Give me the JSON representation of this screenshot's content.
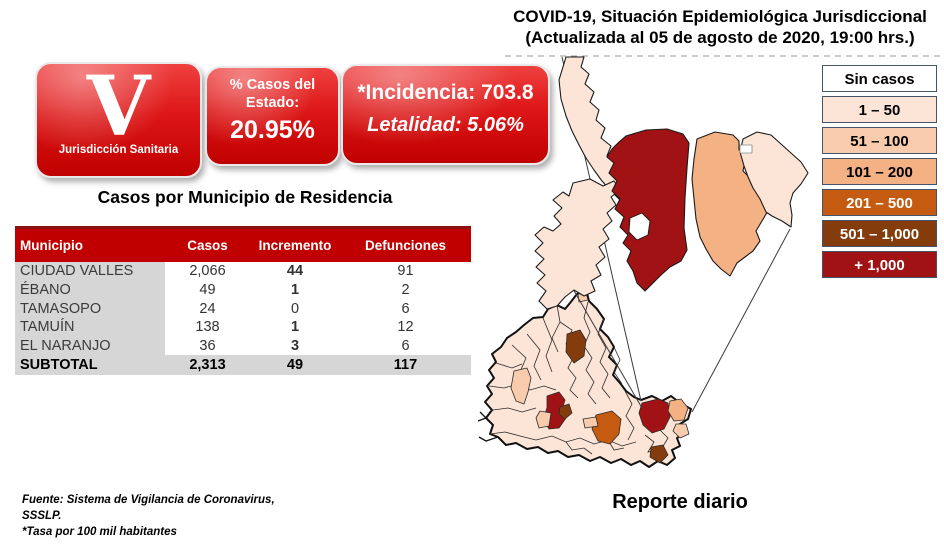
{
  "title": {
    "line1": "COVID-19, Situación Epidemiológica Jurisdiccional",
    "line2": "(Actualizada al 05 de agosto de 2020, 19:00 hrs.)"
  },
  "badge": {
    "letter": "V",
    "label": "Jurisdicción Sanitaria"
  },
  "stats": {
    "pct_label_1": "% Casos del",
    "pct_label_2": "Estado:",
    "pct_value": "20.95%",
    "incidencia": "*Incidencia: 703.8",
    "letalidad": "Letalidad: 5.06%"
  },
  "table": {
    "title": "Casos por Municipio  de Residencia",
    "headers": [
      "Municipio",
      "Casos",
      "Incremento",
      "Defunciones"
    ],
    "rows": [
      {
        "municipio": "CIUDAD VALLES",
        "casos": "2,066",
        "incremento": "44",
        "defunciones": "91",
        "inc_bold": true
      },
      {
        "municipio": "ÉBANO",
        "casos": "49",
        "incremento": "1",
        "defunciones": "2",
        "inc_bold": true
      },
      {
        "municipio": "TAMASOPO",
        "casos": "24",
        "incremento": "0",
        "defunciones": "6",
        "inc_bold": false
      },
      {
        "municipio": "TAMUÍN",
        "casos": "138",
        "incremento": "1",
        "defunciones": "12",
        "inc_bold": true
      },
      {
        "municipio": "EL NARANJO",
        "casos": "36",
        "incremento": "3",
        "defunciones": "6",
        "inc_bold": true
      }
    ],
    "subtotal": {
      "municipio": "SUBTOTAL",
      "casos": "2,313",
      "incremento": "49",
      "defunciones": "117"
    }
  },
  "legend": {
    "items": [
      {
        "label": "Sin casos",
        "color": "#FFFFFF",
        "text_color": "#000000"
      },
      {
        "label": "1 – 50",
        "color": "#FCE4D6",
        "text_color": "#000000"
      },
      {
        "label": "51 – 100",
        "color": "#F8CBAD",
        "text_color": "#000000"
      },
      {
        "label": "101 – 200",
        "color": "#F4B183",
        "text_color": "#000000"
      },
      {
        "label": "201 – 500",
        "color": "#C55A11",
        "text_color": "#FFFFFF"
      },
      {
        "label": "501 – 1,000",
        "color": "#843C0C",
        "text_color": "#FFFFFF"
      },
      {
        "label": "+ 1,000",
        "color": "#A11214",
        "text_color": "#FFFFFF"
      }
    ]
  },
  "footer": {
    "source_line1": "Fuente: Sistema de Vigilancia  de Coronavirus,",
    "source_line2": "SSSLP.",
    "source_line3": "*Tasa por 100 mil habitantes",
    "report": "Reporte diario"
  },
  "map": {
    "top": [
      {
        "name": "El Naranjo",
        "color": "#FCE4D6"
      },
      {
        "name": "Tamasopo",
        "color": "#FCE4D6"
      },
      {
        "name": "Ciudad Valles",
        "color": "#A11214"
      },
      {
        "name": "Tamuín",
        "color": "#F4B183"
      },
      {
        "name": "Ébano",
        "color": "#FCE4D6"
      }
    ],
    "state_base_color": "#FCE4D6",
    "state_highlights": [
      {
        "name": "brown-north",
        "color": "#843C0C"
      },
      {
        "name": "red-capital",
        "color": "#A11214"
      },
      {
        "name": "brown-small",
        "color": "#843C0C"
      },
      {
        "name": "orange-center",
        "color": "#C55A11"
      },
      {
        "name": "red-valles",
        "color": "#A11214"
      },
      {
        "name": "brown-southeast",
        "color": "#843C0C"
      },
      {
        "name": "peach-west",
        "color": "#F8CBAD"
      },
      {
        "name": "peach-near-cap",
        "color": "#F8CBAD"
      },
      {
        "name": "peach-sliver",
        "color": "#F8CBAD"
      },
      {
        "name": "peach-east",
        "color": "#F4B183"
      },
      {
        "name": "peach-tail",
        "color": "#F8CBAD"
      },
      {
        "name": "peach-top-tiny",
        "color": "#F8CBAD"
      }
    ]
  },
  "chart_data": {
    "type": "table",
    "title": "Casos por Municipio  de Residencia",
    "columns": [
      "Municipio",
      "Casos",
      "Incremento",
      "Defunciones"
    ],
    "rows": [
      [
        "CIUDAD VALLES",
        2066,
        44,
        91
      ],
      [
        "ÉBANO",
        49,
        1,
        2
      ],
      [
        "TAMASOPO",
        24,
        0,
        6
      ],
      [
        "TAMUÍN",
        138,
        1,
        12
      ],
      [
        "EL NARANJO",
        36,
        3,
        6
      ],
      [
        "SUBTOTAL",
        2313,
        49,
        117
      ]
    ],
    "stats": {
      "pct_casos_estado": 20.95,
      "incidencia_tasa_100mil": 703.8,
      "letalidad_pct": 5.06
    },
    "choropleth_bins": [
      "Sin casos",
      "1 – 50",
      "51 – 100",
      "101 – 200",
      "201 – 500",
      "501 – 1,000",
      "+ 1,000"
    ],
    "choropleth_values": {
      "CIUDAD VALLES": "+ 1,000",
      "TAMUÍN": "101 – 200",
      "ÉBANO": "1 – 50",
      "TAMASOPO": "1 – 50",
      "EL NARANJO": "1 – 50"
    }
  }
}
